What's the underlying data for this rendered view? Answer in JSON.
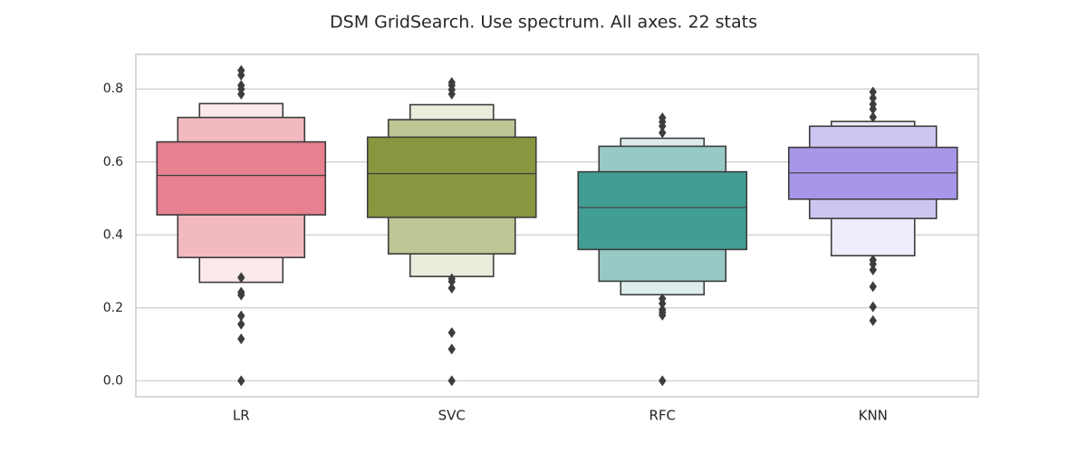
{
  "chart_data": {
    "type": "boxen",
    "title": "DSM GridSearch. Use spectrum. All axes. 22 stats",
    "xlabel": "",
    "ylabel": "",
    "ylim": [
      -0.044,
      0.895
    ],
    "yticks": [
      0.0,
      0.2,
      0.4,
      0.6,
      0.8
    ],
    "ytick_labels": [
      "0.0",
      "0.2",
      "0.4",
      "0.6",
      "0.8"
    ],
    "grid": true,
    "categories": [
      "LR",
      "SVC",
      "RFC",
      "KNN"
    ],
    "colors": [
      "#e7808f",
      "#8a963f",
      "#429d95",
      "#a896e8"
    ],
    "series": [
      {
        "category": "LR",
        "median": 0.563,
        "levels": [
          {
            "low": 0.455,
            "high": 0.655
          },
          {
            "low": 0.338,
            "high": 0.722
          },
          {
            "low": 0.27,
            "high": 0.76
          }
        ],
        "outliers": [
          0.0,
          0.115,
          0.155,
          0.178,
          0.235,
          0.243,
          0.283,
          0.786,
          0.8,
          0.81,
          0.838,
          0.851
        ]
      },
      {
        "category": "SVC",
        "median": 0.568,
        "levels": [
          {
            "low": 0.448,
            "high": 0.668
          },
          {
            "low": 0.348,
            "high": 0.716
          },
          {
            "low": 0.286,
            "high": 0.757
          }
        ],
        "outliers": [
          0.0,
          0.087,
          0.132,
          0.254,
          0.272,
          0.28,
          0.786,
          0.798,
          0.81,
          0.818
        ]
      },
      {
        "category": "RFC",
        "median": 0.475,
        "levels": [
          {
            "low": 0.36,
            "high": 0.573
          },
          {
            "low": 0.273,
            "high": 0.643
          },
          {
            "low": 0.236,
            "high": 0.665
          }
        ],
        "outliers": [
          0.0,
          0.18,
          0.188,
          0.195,
          0.212,
          0.225,
          0.68,
          0.698,
          0.71,
          0.721
        ]
      },
      {
        "category": "KNN",
        "median": 0.57,
        "levels": [
          {
            "low": 0.498,
            "high": 0.64
          },
          {
            "low": 0.445,
            "high": 0.698
          },
          {
            "low": 0.343,
            "high": 0.711
          }
        ],
        "outliers": [
          0.165,
          0.203,
          0.258,
          0.304,
          0.32,
          0.331,
          0.723,
          0.745,
          0.758,
          0.775,
          0.792
        ]
      }
    ]
  }
}
